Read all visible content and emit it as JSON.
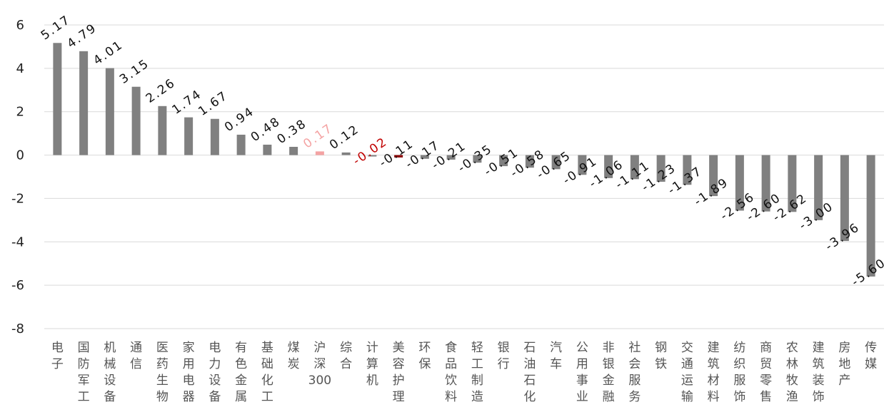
{
  "chart_data": {
    "type": "bar",
    "title": "",
    "xlabel": "",
    "ylabel": "",
    "ylim": [
      -8,
      6
    ],
    "yticks": [
      6,
      4,
      2,
      0,
      -2,
      -4,
      -6,
      -8
    ],
    "ytick_labels": [
      "6",
      "4",
      "2",
      "0",
      "-2",
      "-4",
      "-6",
      "-8"
    ],
    "grid": true,
    "categories": [
      "电子",
      "国防军工",
      "机械设备",
      "通信",
      "医药生物",
      "家用电器",
      "电力设备",
      "有色金属",
      "基础化工",
      "煤炭",
      "沪深300",
      "综合",
      "计算机",
      "美容护理",
      "环保",
      "食品饮料",
      "轻工制造",
      "银行",
      "石油石化",
      "汽车",
      "公用事业",
      "非银金融",
      "社会服务",
      "钢铁",
      "交通运输",
      "建筑材料",
      "纺织服饰",
      "商贸零售",
      "农林牧渔",
      "建筑装饰",
      "房地产",
      "传媒"
    ],
    "values": [
      5.17,
      4.79,
      4.01,
      3.15,
      2.26,
      1.74,
      1.67,
      0.94,
      0.48,
      0.38,
      0.17,
      0.12,
      -0.02,
      -0.11,
      -0.17,
      -0.21,
      -0.35,
      -0.51,
      -0.58,
      -0.65,
      -0.91,
      -1.06,
      -1.11,
      -1.23,
      -1.37,
      -1.89,
      -2.56,
      -2.6,
      -2.62,
      -3.0,
      -3.96,
      -5.6
    ],
    "value_labels": [
      "5.17",
      "4.79",
      "4.01",
      "3.15",
      "2.26",
      "1.74",
      "1.67",
      "0.94",
      "0.48",
      "0.38",
      "0.17",
      "0.12",
      "-0.02",
      "-0.11",
      "-0.17",
      "-0.21",
      "-0.35",
      "-0.51",
      "-0.58",
      "-0.65",
      "-0.91",
      "-1.06",
      "-1.11",
      "-1.23",
      "-1.37",
      "-1.89",
      "-2.56",
      "-2.60",
      "-2.62",
      "-3.00",
      "-3.96",
      "-5.60"
    ],
    "colors": {
      "bar": "#808080",
      "benchmark_bar": "#f4a3a3",
      "benchmark_label": "#f4a3a3",
      "negative_small_bar": "#8b0000",
      "negative_small_label": "#c00000",
      "text": "#111111",
      "category_text": "#555555",
      "grid": "#d9d9d9"
    },
    "highlight": {
      "沪深300": {
        "bar": "benchmark_bar",
        "label": "benchmark_label"
      },
      "计算机": {
        "label": "negative_small_label"
      },
      "美容护理": {
        "bar": "negative_small_bar"
      }
    }
  }
}
